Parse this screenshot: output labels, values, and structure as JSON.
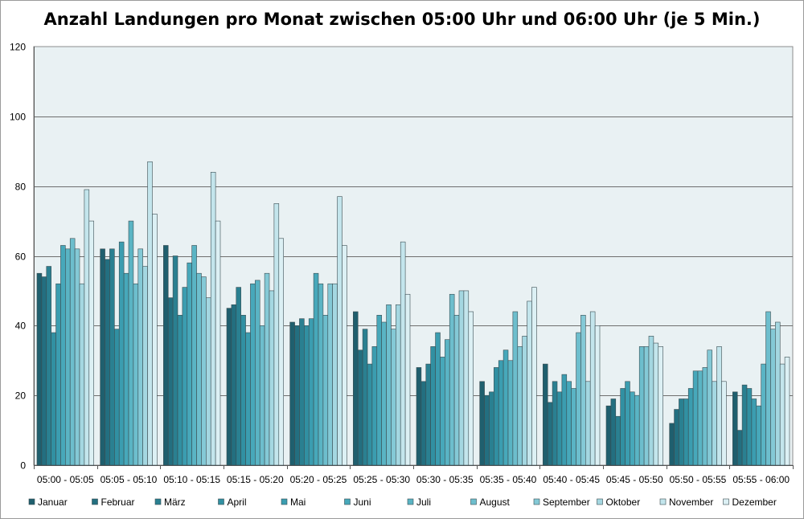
{
  "chart_data": {
    "type": "bar",
    "title": "Anzahl Landungen pro Monat zwischen 05:00 Uhr und 06:00 Uhr (je 5 Min.)",
    "xlabel": "",
    "ylabel": "",
    "ylim": [
      0,
      120
    ],
    "yticks": [
      0,
      20,
      40,
      60,
      80,
      100,
      120
    ],
    "grid": true,
    "legend_position": "bottom",
    "categories": [
      "05:00 - 05:05",
      "05:05 - 05:10",
      "05:10 - 05:15",
      "05:15 - 05:20",
      "05:20 - 05:25",
      "05:25 - 05:30",
      "05:30 - 05:35",
      "05:35 - 05:40",
      "05:40 - 05:45",
      "05:45 - 05:50",
      "05:50 - 05:55",
      "05:55 - 06:00"
    ],
    "series": [
      {
        "name": "Januar",
        "color": "#1f5f6e",
        "values": [
          55,
          62,
          63,
          45,
          41,
          44,
          28,
          24,
          29,
          17,
          12,
          21
        ]
      },
      {
        "name": "Februar",
        "color": "#236f80",
        "values": [
          54,
          59,
          48,
          46,
          40,
          33,
          24,
          20,
          18,
          19,
          16,
          10
        ]
      },
      {
        "name": "März",
        "color": "#2a8091",
        "values": [
          57,
          62,
          60,
          51,
          42,
          39,
          29,
          21,
          24,
          14,
          19,
          23
        ]
      },
      {
        "name": "April",
        "color": "#3190a2",
        "values": [
          38,
          39,
          43,
          43,
          40,
          29,
          34,
          28,
          21,
          22,
          19,
          22
        ]
      },
      {
        "name": "Mai",
        "color": "#3b9db0",
        "values": [
          52,
          64,
          51,
          38,
          42,
          34,
          38,
          30,
          26,
          24,
          22,
          19
        ]
      },
      {
        "name": "Juni",
        "color": "#47a8ba",
        "values": [
          63,
          55,
          58,
          52,
          55,
          43,
          31,
          33,
          24,
          21,
          27,
          17
        ]
      },
      {
        "name": "Juli",
        "color": "#5ab4c4",
        "values": [
          62,
          70,
          63,
          53,
          52,
          41,
          36,
          30,
          22,
          20,
          27,
          29
        ]
      },
      {
        "name": "August",
        "color": "#6dbecd",
        "values": [
          65,
          52,
          55,
          40,
          43,
          46,
          49,
          44,
          38,
          34,
          28,
          44
        ]
      },
      {
        "name": "September",
        "color": "#84c9d6",
        "values": [
          62,
          62,
          54,
          55,
          52,
          39,
          43,
          34,
          43,
          34,
          33,
          39
        ]
      },
      {
        "name": "Oktober",
        "color": "#a4d7e1",
        "values": [
          52,
          57,
          48,
          50,
          52,
          46,
          50,
          37,
          24,
          37,
          24,
          41
        ]
      },
      {
        "name": "November",
        "color": "#c3e5ec",
        "values": [
          79,
          87,
          84,
          75,
          77,
          64,
          50,
          47,
          44,
          35,
          34,
          29
        ]
      },
      {
        "name": "Dezember",
        "color": "#dcf0f4",
        "values": [
          70,
          72,
          70,
          65,
          63,
          49,
          44,
          51,
          40,
          34,
          24,
          31
        ]
      }
    ]
  }
}
